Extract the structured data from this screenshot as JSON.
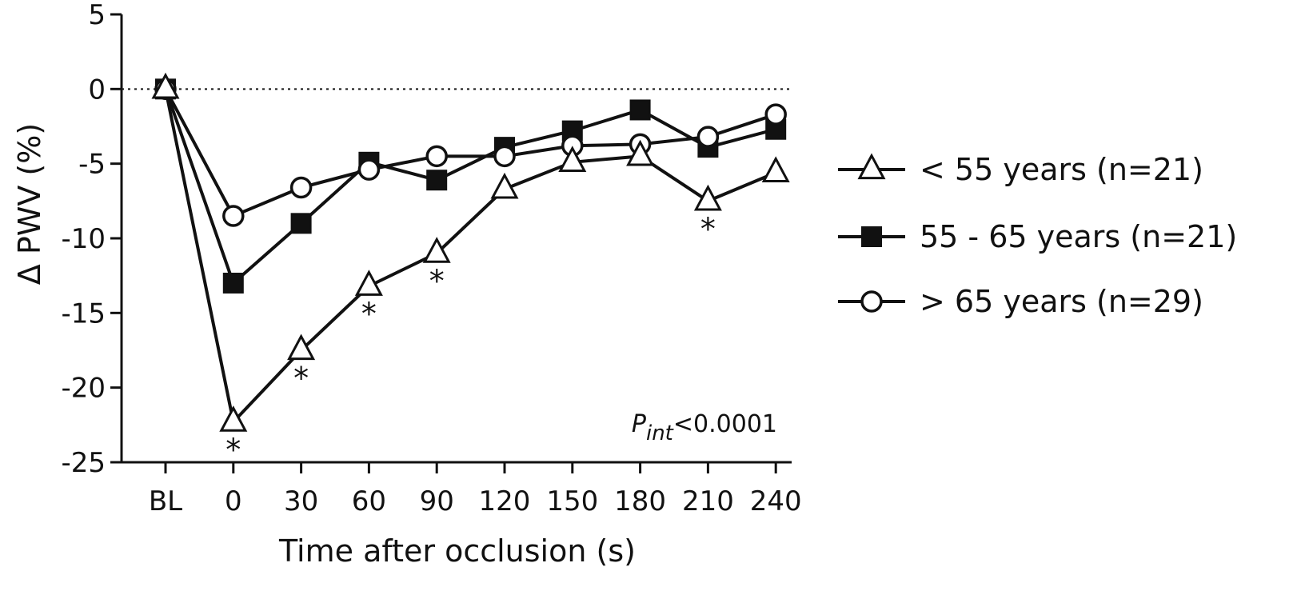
{
  "chart_data": {
    "type": "line",
    "xlabel": "Time after occlusion (s)",
    "ylabel": "Δ PWV (%)",
    "categories": [
      "BL",
      "0",
      "30",
      "60",
      "90",
      "120",
      "150",
      "180",
      "210",
      "240"
    ],
    "ylim": [
      -25,
      5
    ],
    "yticks": [
      5,
      0,
      -5,
      -10,
      -15,
      -20,
      -25
    ],
    "ytick_labels": [
      "5",
      "0",
      "-5",
      "-10",
      "-15",
      "-20",
      "-25"
    ],
    "reference_line": {
      "y": 0,
      "style": "dotted"
    },
    "grid": false,
    "legend_position": "right",
    "series": [
      {
        "name": "< 55 years (n=21)",
        "marker": "triangle-open",
        "values": [
          0,
          -22.3,
          -17.5,
          -13.2,
          -11.0,
          -6.7,
          -4.9,
          -4.5,
          -7.5,
          -5.6
        ]
      },
      {
        "name": "55 - 65 years (n=21)",
        "marker": "square-filled",
        "values": [
          0,
          -13.0,
          -9.0,
          -4.9,
          -6.1,
          -3.9,
          -2.8,
          -1.4,
          -3.9,
          -2.7
        ]
      },
      {
        "name": "> 65 years (n=29)",
        "marker": "circle-open",
        "values": [
          0,
          -8.5,
          -6.6,
          -5.4,
          -4.5,
          -4.5,
          -3.8,
          -3.7,
          -3.2,
          -1.7
        ]
      }
    ],
    "significance": {
      "symbol": "*",
      "categories": [
        "0",
        "30",
        "60",
        "90",
        "210"
      ]
    },
    "annotation": {
      "prefix": "P",
      "subscript": "int",
      "suffix": "<0.0001"
    }
  }
}
